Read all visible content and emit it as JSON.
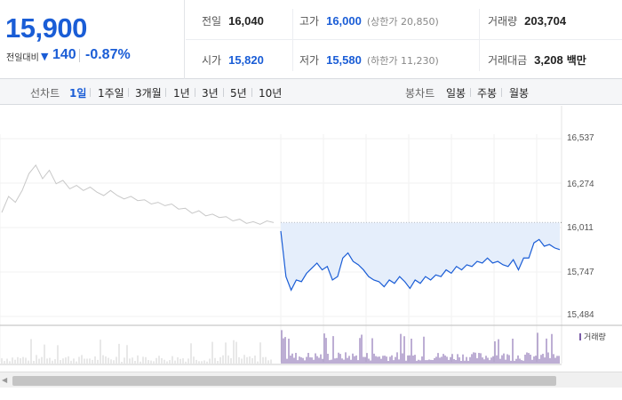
{
  "quote": {
    "price": "15,900",
    "change_label": "전일대비",
    "change_icon": "down-triangle-icon",
    "change_value": "140",
    "change_percent": "-0.87%"
  },
  "stats": {
    "prev_close": {
      "label": "전일",
      "value": "16,040"
    },
    "high": {
      "label": "고가",
      "value": "16,000",
      "note": "(상한가 20,850)"
    },
    "volume": {
      "label": "거래량",
      "value": "203,704"
    },
    "open": {
      "label": "시가",
      "value": "15,820"
    },
    "low": {
      "label": "저가",
      "value": "15,580",
      "note": "(하한가 11,230)"
    },
    "amount": {
      "label": "거래대금",
      "value": "3,208",
      "unit": "백만"
    }
  },
  "period_bar": {
    "line_label": "선차트",
    "line_items": [
      "1일",
      "1주일",
      "3개월",
      "1년",
      "3년",
      "5년",
      "10년"
    ],
    "active_line_item": "1일",
    "candle_label": "봉차트",
    "candle_items": [
      "일봉",
      "주봉",
      "월봉"
    ]
  },
  "chart_data": {
    "type": "line",
    "y_ticks": [
      "16,537",
      "16,274",
      "16,011",
      "15,747",
      "15,484"
    ],
    "ylim": [
      15484,
      16537
    ],
    "reference_line": 16040,
    "volume_legend": "거래량",
    "colors": {
      "prev_day": "#c8c8c8",
      "today": "#1a5dd6",
      "fill": "#e5eefb",
      "volume": "#7b5ea8"
    },
    "prev_day_series": [
      16100,
      16195,
      16160,
      16230,
      16330,
      16380,
      16300,
      16350,
      16270,
      16290,
      16240,
      16260,
      16230,
      16250,
      16220,
      16200,
      16230,
      16200,
      16180,
      16195,
      16170,
      16175,
      16150,
      16160,
      16140,
      16150,
      16120,
      16125,
      16095,
      16110,
      16080,
      16090,
      16070,
      16075,
      16050,
      16060,
      16035,
      16045,
      16030,
      16050,
      16040
    ],
    "today_series": [
      15990,
      15720,
      15640,
      15700,
      15690,
      15740,
      15770,
      15800,
      15760,
      15780,
      15700,
      15720,
      15830,
      15860,
      15810,
      15790,
      15760,
      15720,
      15700,
      15690,
      15660,
      15700,
      15680,
      15720,
      15690,
      15650,
      15700,
      15680,
      15720,
      15700,
      15730,
      15720,
      15760,
      15740,
      15780,
      15760,
      15790,
      15780,
      15810,
      15800,
      15830,
      15800,
      15810,
      15790,
      15780,
      15820,
      15760,
      15830,
      15830,
      15920,
      15940,
      15900,
      15910,
      15890,
      15880
    ]
  }
}
